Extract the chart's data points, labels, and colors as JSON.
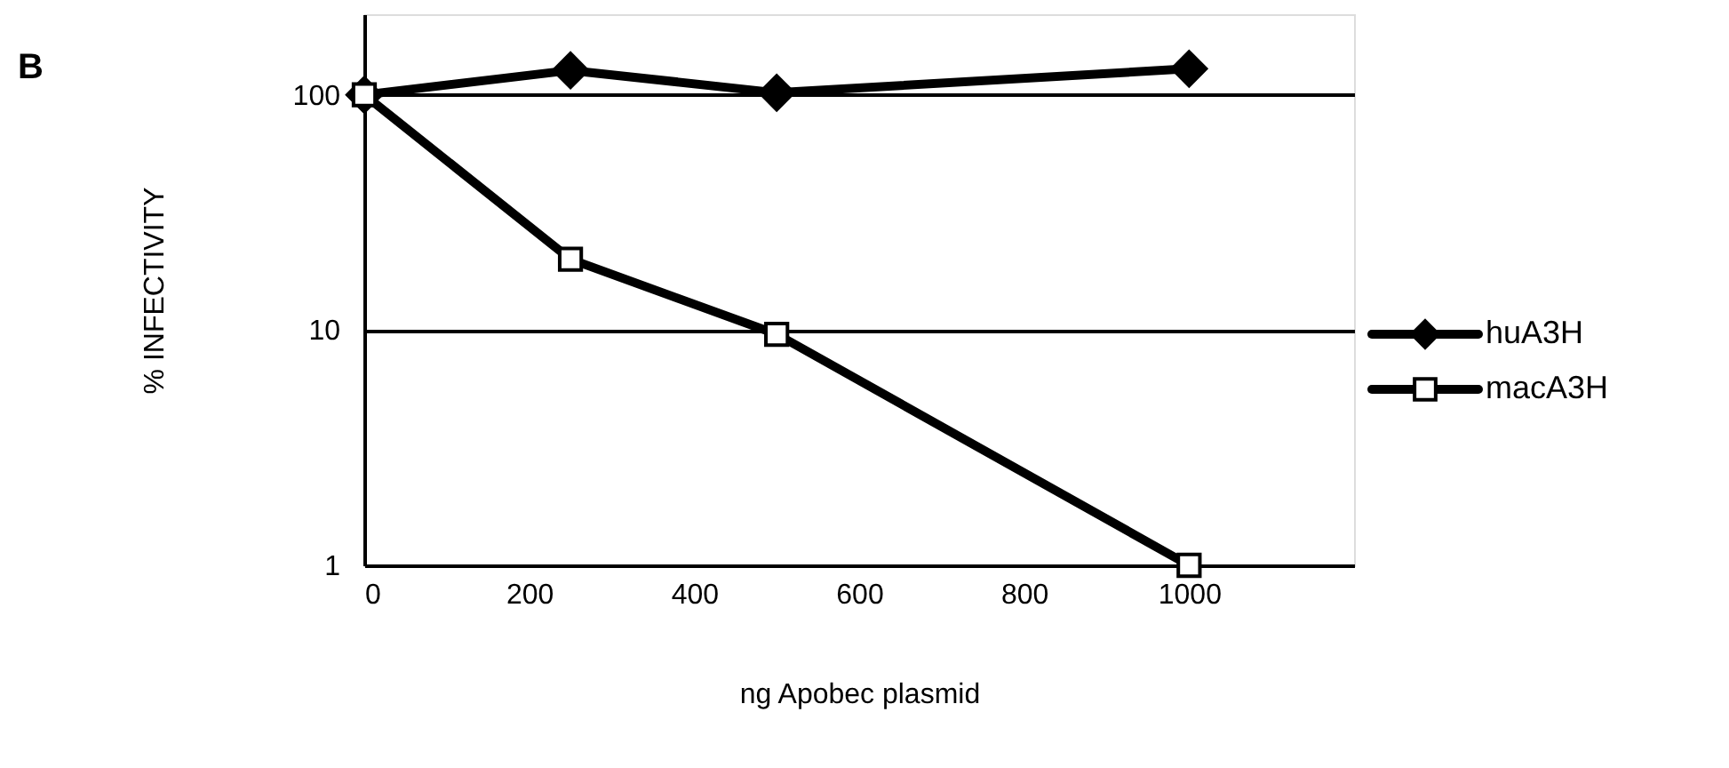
{
  "chart_data": {
    "type": "line",
    "annotations": [
      "B"
    ],
    "xlabel": "ng Apobec plasmid",
    "ylabel": "% INFECTIVITY",
    "x": [
      0,
      250,
      500,
      1000
    ],
    "series": [
      {
        "name": "huA3H",
        "color": "#000000",
        "marker": "diamond",
        "values": [
          100,
          127,
          102,
          129
        ]
      },
      {
        "name": "macA3H",
        "color": "#000000",
        "marker": "square",
        "values": [
          100,
          20,
          9.6,
          1
        ]
      }
    ],
    "xlim": [
      0,
      1200
    ],
    "xticks": [
      0,
      200,
      400,
      600,
      800,
      1000
    ],
    "ylim": [
      1,
      220
    ],
    "yticks": [
      1,
      10,
      100
    ],
    "log": "y",
    "grid": "y",
    "legend": "right",
    "line_style": "solid"
  }
}
